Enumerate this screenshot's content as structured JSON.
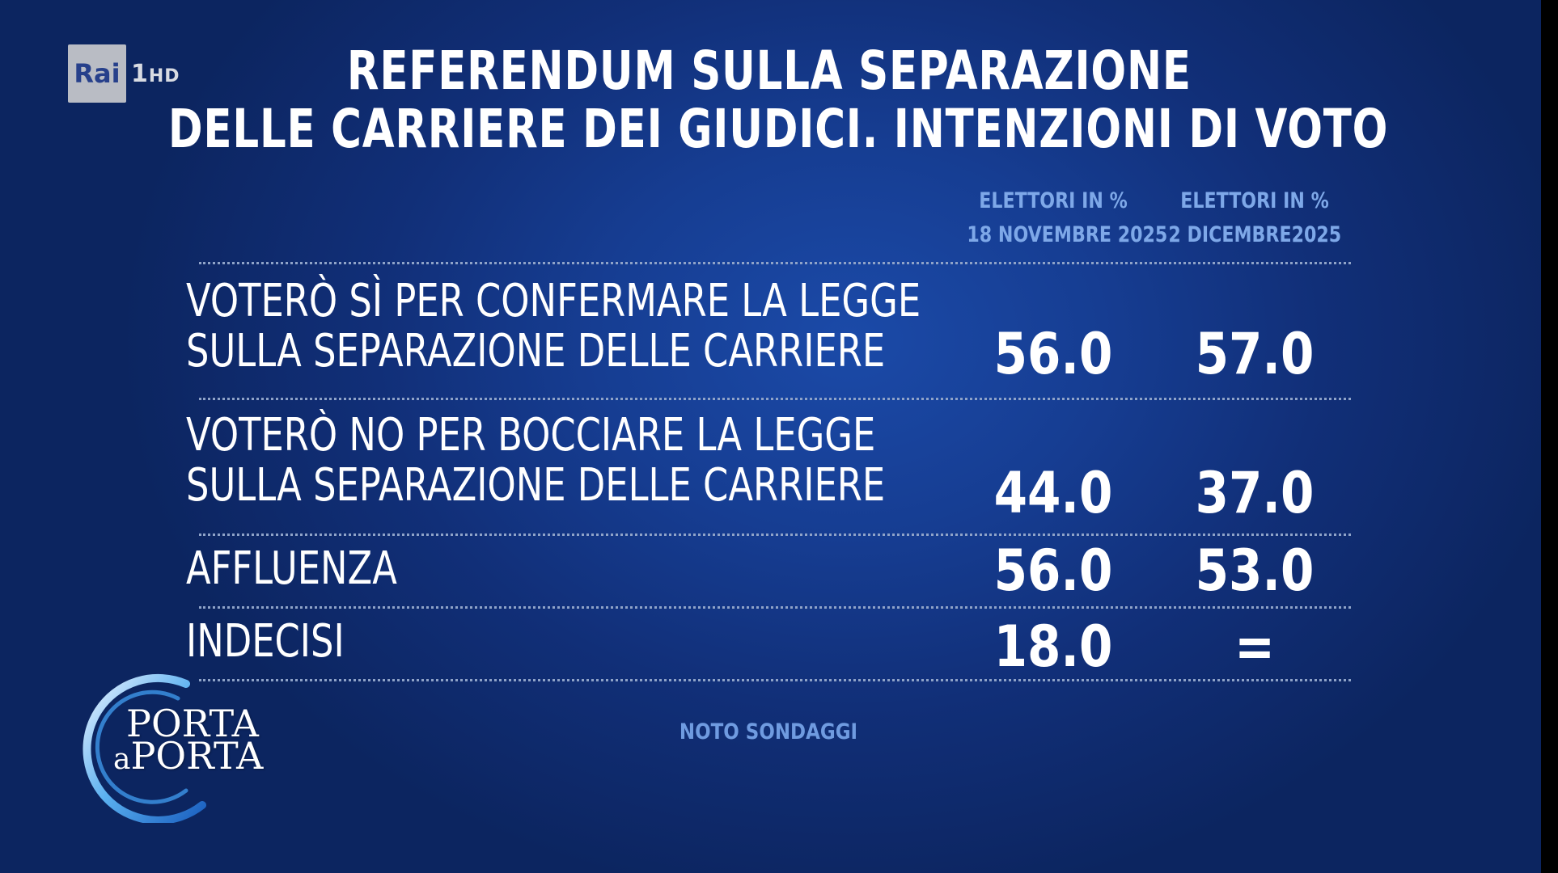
{
  "channel": {
    "brand": "Rai",
    "number": "1",
    "hd": "HD"
  },
  "show_logo": {
    "line1": "PORTA",
    "line2_prefix": "a",
    "line2": "PORTA"
  },
  "chart_data": {
    "type": "table",
    "title": [
      "REFERENDUM SULLA SEPARAZIONE",
      "DELLE CARRIERE DEI GIUDICI. INTENZIONI DI VOTO"
    ],
    "columns": [
      {
        "line1": "ELETTORI IN %",
        "line2": "18 NOVEMBRE 2025"
      },
      {
        "line1": "ELETTORI IN %",
        "line2": "2 DICEMBRE2025"
      }
    ],
    "rows": [
      {
        "label": [
          "VOTERÒ SÌ PER CONFERMARE LA LEGGE",
          "SULLA SEPARAZIONE DELLE CARRIERE"
        ],
        "values": [
          "56.0",
          "57.0"
        ]
      },
      {
        "label": [
          "VOTERÒ NO PER BOCCIARE LA LEGGE",
          "SULLA SEPARAZIONE DELLE CARRIERE"
        ],
        "values": [
          "44.0",
          "37.0"
        ]
      },
      {
        "label": [
          "AFFLUENZA"
        ],
        "values": [
          "56.0",
          "53.0"
        ]
      },
      {
        "label": [
          "INDECISI"
        ],
        "values": [
          "18.0",
          "="
        ]
      }
    ],
    "source": "NOTO SONDAGGI"
  }
}
